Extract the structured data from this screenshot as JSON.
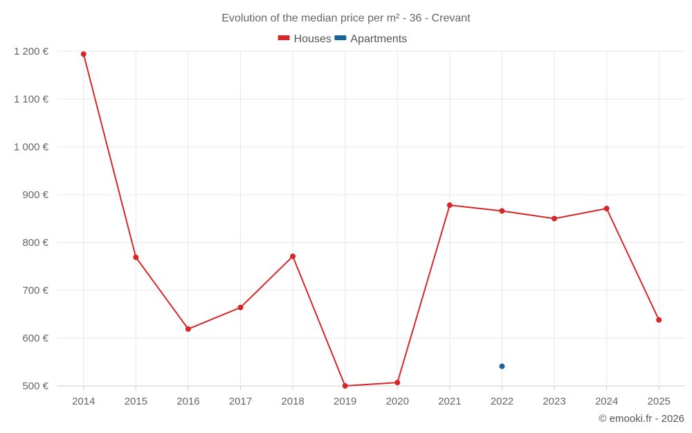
{
  "chart_data": {
    "type": "line",
    "title": "Evolution of the median price per m² - 36 - Crevant",
    "categories": [
      "2014",
      "2015",
      "2016",
      "2017",
      "2018",
      "2019",
      "2020",
      "2021",
      "2022",
      "2023",
      "2024",
      "2025"
    ],
    "series": [
      {
        "name": "Houses",
        "color": "#d62728",
        "values": [
          1194,
          769,
          619,
          664,
          771,
          500,
          507,
          878,
          866,
          850,
          871,
          638
        ]
      },
      {
        "name": "Apartments",
        "color": "#1a6396",
        "values": [
          null,
          null,
          null,
          null,
          null,
          null,
          null,
          null,
          541,
          null,
          null,
          null
        ]
      }
    ],
    "ylim": [
      500,
      1200
    ],
    "yticks": [
      500,
      600,
      700,
      800,
      900,
      1000,
      1100,
      1200
    ],
    "ytick_labels": [
      "500 €",
      "600 €",
      "700 €",
      "800 €",
      "900 €",
      "1 000 €",
      "1 100 €",
      "1 200 €"
    ],
    "xlabel": "",
    "ylabel": "",
    "grid": true,
    "legend_position": "top-center"
  },
  "credit": "© emooki.fr - 2026"
}
